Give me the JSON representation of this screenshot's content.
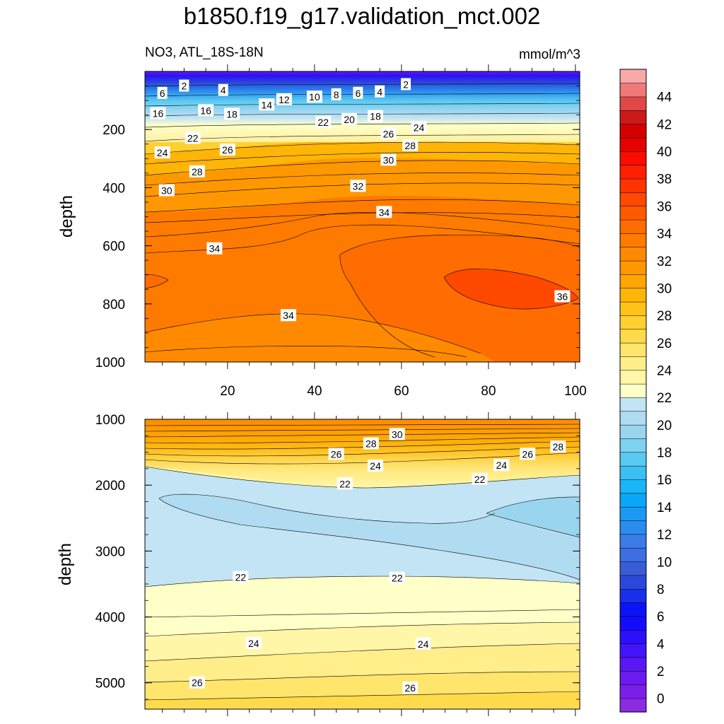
{
  "chart_data": {
    "type": "contour",
    "title": "b1850.f19_g17.validation_mct.002",
    "subtitle": "NO3, ATL_18S-18N",
    "units": "mmol/m^3",
    "xticks": [
      20,
      40,
      60,
      80,
      100
    ],
    "xlim": [
      1,
      101
    ],
    "panels": [
      {
        "name": "upper",
        "ylabel": "depth",
        "ylim": [
          1000,
          0
        ],
        "yticks": [
          200,
          400,
          600,
          800,
          1000
        ],
        "contour_labels": [
          {
            "text": "2",
            "x": 10,
            "y": 50
          },
          {
            "text": "4",
            "x": 19,
            "y": 65
          },
          {
            "text": "6",
            "x": 5,
            "y": 75
          },
          {
            "text": "14",
            "x": 29,
            "y": 115
          },
          {
            "text": "12",
            "x": 33,
            "y": 97
          },
          {
            "text": "10",
            "x": 40,
            "y": 88
          },
          {
            "text": "8",
            "x": 45,
            "y": 80
          },
          {
            "text": "6",
            "x": 50,
            "y": 75
          },
          {
            "text": "4",
            "x": 55,
            "y": 70
          },
          {
            "text": "2",
            "x": 61,
            "y": 45
          },
          {
            "text": "16",
            "x": 4,
            "y": 145
          },
          {
            "text": "16",
            "x": 15,
            "y": 135
          },
          {
            "text": "18",
            "x": 21,
            "y": 147
          },
          {
            "text": "22",
            "x": 42,
            "y": 175
          },
          {
            "text": "20",
            "x": 48,
            "y": 165
          },
          {
            "text": "18",
            "x": 54,
            "y": 155
          },
          {
            "text": "22",
            "x": 12,
            "y": 230
          },
          {
            "text": "24",
            "x": 5,
            "y": 280
          },
          {
            "text": "26",
            "x": 20,
            "y": 270
          },
          {
            "text": "26",
            "x": 57,
            "y": 215
          },
          {
            "text": "24",
            "x": 64,
            "y": 193
          },
          {
            "text": "28",
            "x": 62,
            "y": 255
          },
          {
            "text": "28",
            "x": 13,
            "y": 345
          },
          {
            "text": "30",
            "x": 57,
            "y": 305
          },
          {
            "text": "30",
            "x": 6,
            "y": 410
          },
          {
            "text": "32",
            "x": 50,
            "y": 395
          },
          {
            "text": "34",
            "x": 56,
            "y": 485
          },
          {
            "text": "34",
            "x": 17,
            "y": 610
          },
          {
            "text": "36",
            "x": 97,
            "y": 775
          },
          {
            "text": "34",
            "x": 34,
            "y": 840
          }
        ]
      },
      {
        "name": "lower",
        "ylabel": "depth",
        "ylim": [
          5400,
          1000
        ],
        "yticks": [
          1000,
          2000,
          3000,
          4000,
          5000
        ],
        "contour_labels": [
          {
            "text": "30",
            "x": 59,
            "y": 1230
          },
          {
            "text": "28",
            "x": 53,
            "y": 1370
          },
          {
            "text": "26",
            "x": 45,
            "y": 1530
          },
          {
            "text": "24",
            "x": 54,
            "y": 1710
          },
          {
            "text": "22",
            "x": 47,
            "y": 1980
          },
          {
            "text": "28",
            "x": 96,
            "y": 1420
          },
          {
            "text": "26",
            "x": 89,
            "y": 1530
          },
          {
            "text": "24",
            "x": 83,
            "y": 1700
          },
          {
            "text": "22",
            "x": 78,
            "y": 1910
          },
          {
            "text": "22",
            "x": 23,
            "y": 3400
          },
          {
            "text": "22",
            "x": 59,
            "y": 3410
          },
          {
            "text": "24",
            "x": 26,
            "y": 4400
          },
          {
            "text": "24",
            "x": 65,
            "y": 4410
          },
          {
            "text": "26",
            "x": 13,
            "y": 5000
          },
          {
            "text": "26",
            "x": 62,
            "y": 5080
          }
        ]
      }
    ],
    "colorbar": {
      "labels": [
        "0",
        "2",
        "4",
        "6",
        "8",
        "10",
        "12",
        "14",
        "16",
        "18",
        "20",
        "22",
        "24",
        "26",
        "28",
        "30",
        "32",
        "34",
        "36",
        "38",
        "40",
        "42",
        "44"
      ],
      "levels": [
        -1,
        0,
        1,
        2,
        3,
        4,
        5,
        6,
        7,
        8,
        9,
        10,
        11,
        12,
        13,
        14,
        15,
        16,
        17,
        18,
        19,
        20,
        21,
        22,
        23,
        24,
        25,
        26,
        27,
        28,
        29,
        30,
        31,
        32,
        33,
        34,
        35,
        36,
        37,
        38,
        39,
        40,
        41,
        42,
        43,
        44,
        45,
        46
      ],
      "colors": [
        "#8B2BE2",
        "#7B1FE8",
        "#6A1BF0",
        "#5A17F4",
        "#4314F8",
        "#2C10FB",
        "#160CFC",
        "#0A14F6",
        "#1830E8",
        "#2C48DA",
        "#3A5DD6",
        "#3D6FE3",
        "#3B7DE8",
        "#2A8CEE",
        "#1A9AF4",
        "#0AA8F8",
        "#1AB6F8",
        "#3AC0F4",
        "#5ACAF2",
        "#7CD2F0",
        "#9AD5F0",
        "#B0DCF2",
        "#C2E4F4",
        "#FFFFC8",
        "#FFF6A8",
        "#FFEE8A",
        "#FFE56C",
        "#FFDB4C",
        "#FFD030",
        "#FFC318",
        "#FFB408",
        "#FFA600",
        "#FF9800",
        "#FF8A00",
        "#FF7B00",
        "#FF6C00",
        "#FF5A00",
        "#FF4800",
        "#FF3400",
        "#FF2000",
        "#FA0C00",
        "#E60000",
        "#D40000",
        "#CC1A1A",
        "#E04848",
        "#F07A7A",
        "#FAA8A8"
      ]
    }
  }
}
